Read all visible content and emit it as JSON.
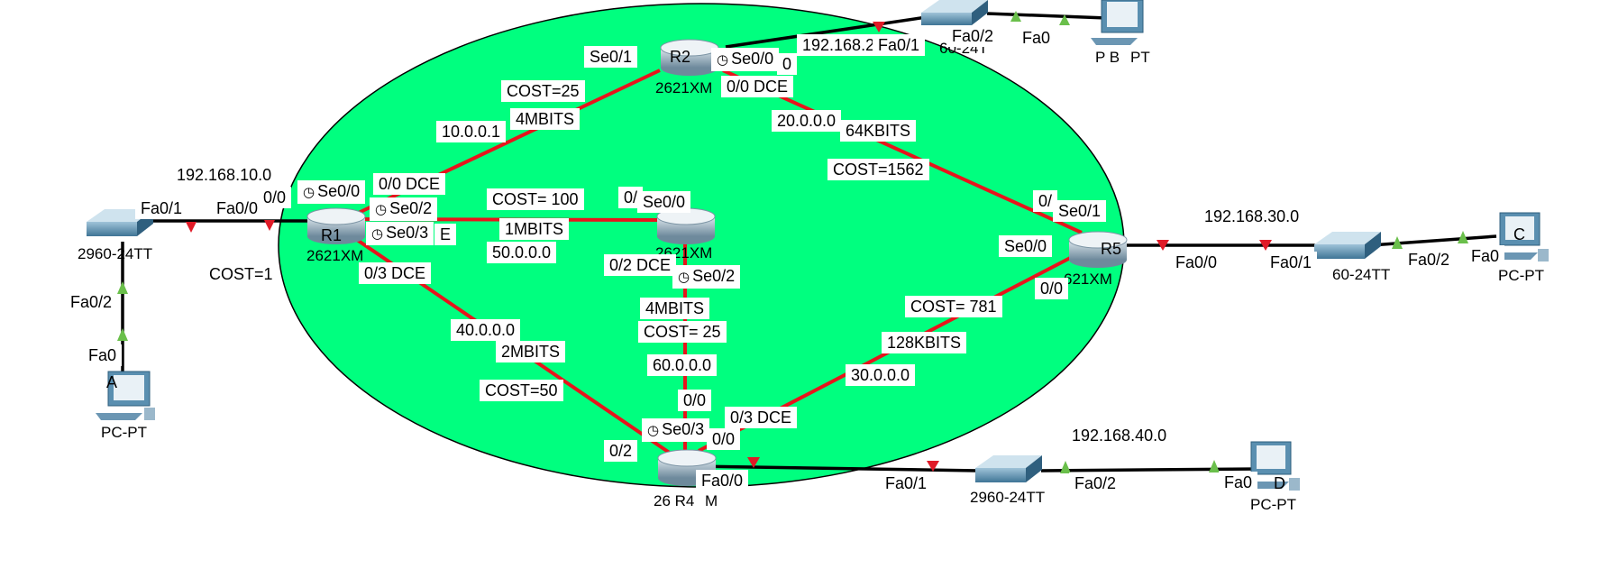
{
  "colors": {
    "ospf_area": "#00ff7f",
    "serial_link": "#e8141c",
    "ethernet_link": "#000000",
    "link_down": "#e01a27",
    "link_up": "#6abf4b",
    "device_blue": "#5a8fb0"
  },
  "routers": {
    "r1": {
      "name": "R1",
      "model": "2621XM"
    },
    "r2": {
      "name": "R2",
      "model": "2621XM"
    },
    "r3": {
      "model": "2621XM"
    },
    "r4": {
      "name": "26 R4",
      "model": "M"
    },
    "r5": {
      "name": "R5",
      "model": "621XM"
    }
  },
  "switches": {
    "sw_left": {
      "model": "2960-24TT"
    },
    "sw_top": {
      "model": "60-24T"
    },
    "sw_right": {
      "model": "60-24TT"
    },
    "sw_bottom": {
      "model": "2960-24TT"
    }
  },
  "pcs": {
    "a": {
      "name": "A",
      "model": "PC-PT"
    },
    "b": {
      "name": "P B",
      "model": "PT"
    },
    "c": {
      "name": "C",
      "model": "PC-PT"
    },
    "d": {
      "name": "D",
      "model": "PC-PT"
    }
  },
  "labels": {
    "r1_se00": "Se0/0",
    "r1_se02": "Se0/2",
    "r1_se03": "Se0/3",
    "r1_fa00": "Fa0/0",
    "r1_00": "0/0",
    "r1_03dce": "0/3 DCE",
    "r1_00dce": "0/0 DCE",
    "net_192_168_10": "192.168.10.0",
    "sw_left_fa01": "Fa0/1",
    "sw_left_fa02": "Fa0/2",
    "pc_a_fa0": "Fa0",
    "cost_1": "COST=1",
    "net_10": "10.0.0.1",
    "bw_4m_top": "4MBITS",
    "cost_25_top": "COST=25",
    "r2_se01": "Se0/1",
    "r2_se00": "Se0/0",
    "r2_00dce": "0/0 DCE",
    "r2_0": "0",
    "net_192_168_2": "192.168.2",
    "sw_top_fa01": "Fa0/1",
    "sw_top_fa02": "Fa0/2",
    "pc_b_fa0": "Fa0",
    "net_20": "20.0.0.0",
    "bw_64k": "64KBITS",
    "cost_1562": "COST=1562",
    "cost_100": "COST= 100",
    "bw_1m": "1MBITS",
    "net_50": "50.0.0.0",
    "r1_e": "E",
    "r3_0": "0/",
    "r3_se00": "Se0/0",
    "r3_02dce": "0/2 DCE",
    "r3_se02": "Se0/2",
    "bw_4m_mid": "4MBITS",
    "cost_25_mid": "COST= 25",
    "net_60": "60.0.0.0",
    "r4_00": "0/0",
    "r4_03dce": "0/3 DCE",
    "r4_se03": "Se0/3",
    "r4_0": "0/0",
    "r4_02": "0/2",
    "r4_fa00": "Fa0/0",
    "net_40": "40.0.0.0",
    "bw_2m": "2MBITS",
    "cost_50": "COST=50",
    "net_30": "30.0.0.0",
    "bw_128k": "128KBITS",
    "cost_781": "COST= 781",
    "r5_0": "0/",
    "r5_se01": "Se0/1",
    "r5_se00": "Se0/0",
    "r5_00": "0/0",
    "r5_fa00": "Fa0/0",
    "net_192_168_30": "192.168.30.0",
    "sw_right_fa01": "Fa0/1",
    "sw_right_fa02": "Fa0/2",
    "pc_c_fa0": "Fa0",
    "net_192_168_40": "192.168.40.0",
    "sw_bottom_fa01": "Fa0/1",
    "sw_bottom_fa02": "Fa0/2",
    "pc_d_fa0": "Fa0"
  }
}
